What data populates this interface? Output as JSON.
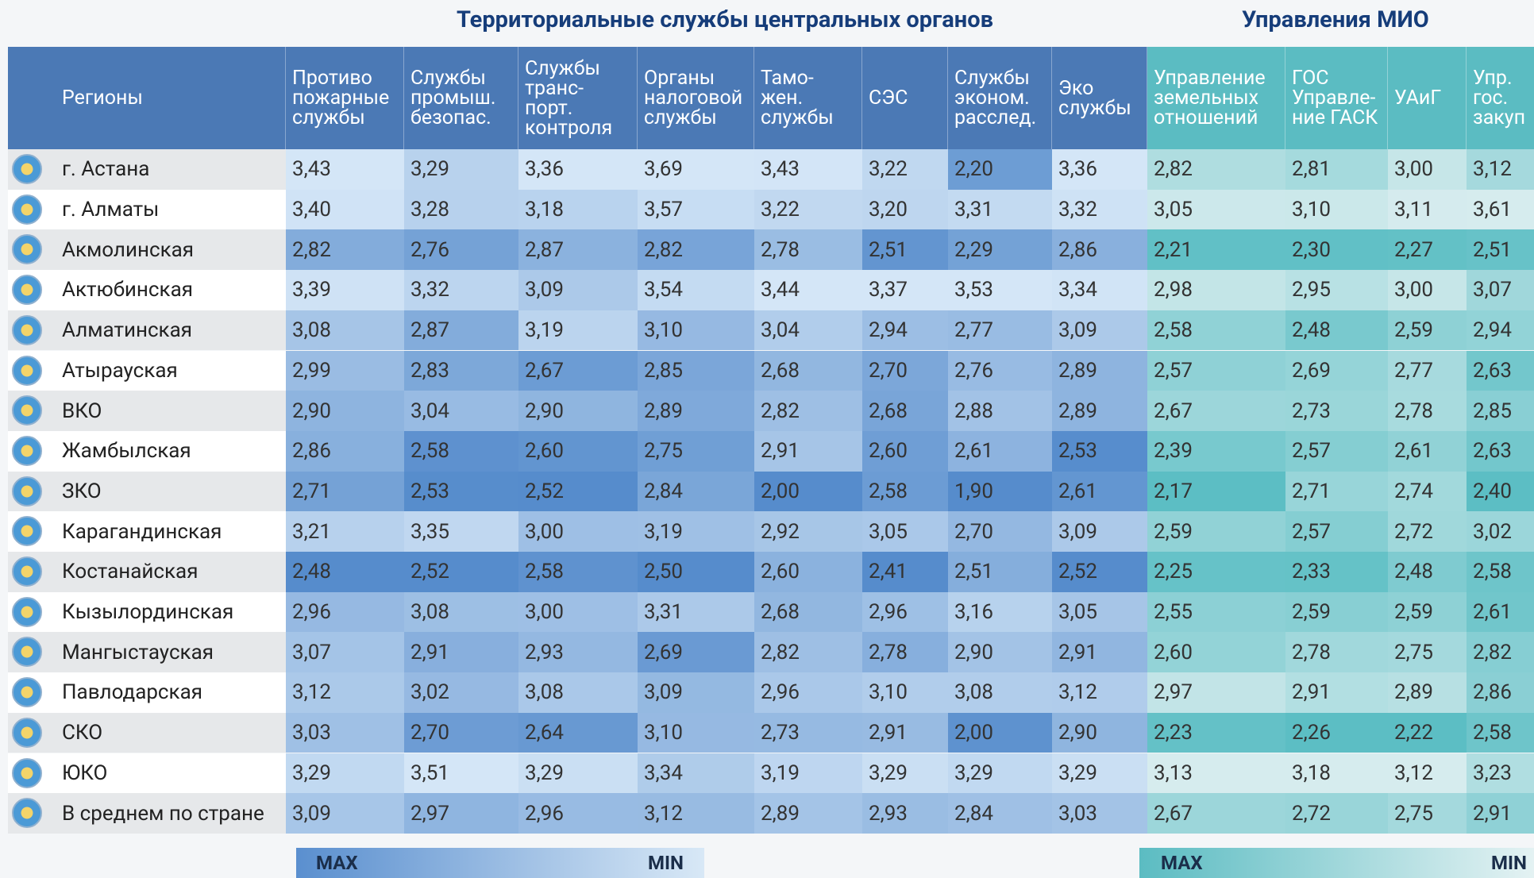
{
  "titles": {
    "left": "Территориальные службы центральных органов",
    "right": "Управления МИО"
  },
  "table": {
    "region_header": "Регионы",
    "columns": [
      "Противо\nпожарные\nслужбы",
      "Службы\nпромыш.\nбезопас.",
      "Службы\nтранс-\nпорт.\nконтроля",
      "Органы\nналоговой\nслужбы",
      "Тамо-\nжен.\nслужбы",
      "СЭС",
      "Службы\nэконом.\nрасслед.",
      "Эко\nслужбы",
      "Управление\nземельных\nотношений",
      "ГОС\nУправле-\nние ГАСК",
      "УАиГ",
      "Упр.\nгос.\nзакуп"
    ],
    "rows": [
      {
        "region": "г. Астана",
        "cells": [
          "3,43",
          "3,29",
          "3,36",
          "3,69",
          "3,43",
          "3,22",
          "2,20",
          "3,36",
          "2,82",
          "2,81",
          "3,00",
          "3,12"
        ]
      },
      {
        "region": "г. Алматы",
        "cells": [
          "3,40",
          "3,28",
          "3,18",
          "3,57",
          "3,22",
          "3,20",
          "3,31",
          "3,32",
          "3,05",
          "3,10",
          "3,11",
          "3,61"
        ]
      },
      {
        "region": "Акмолинская",
        "cells": [
          "2,82",
          "2,76",
          "2,87",
          "2,82",
          "2,78",
          "2,51",
          "2,29",
          "2,86",
          "2,21",
          "2,30",
          "2,27",
          "2,51"
        ]
      },
      {
        "region": "Актюбинская",
        "cells": [
          "3,39",
          "3,32",
          "3,09",
          "3,54",
          "3,44",
          "3,37",
          "3,53",
          "3,34",
          "2,98",
          "2,95",
          "3,00",
          "3,07"
        ]
      },
      {
        "region": "Алматинская",
        "cells": [
          "3,08",
          "2,87",
          "3,19",
          "3,10",
          "3,04",
          "2,94",
          "2,77",
          "3,09",
          "2,58",
          "2,48",
          "2,59",
          "2,94"
        ]
      },
      {
        "region": "Атырауская",
        "cells": [
          "2,99",
          "2,83",
          "2,67",
          "2,85",
          "2,68",
          "2,70",
          "2,76",
          "2,89",
          "2,57",
          "2,69",
          "2,77",
          "2,63"
        ]
      },
      {
        "region": "ВКО",
        "cells": [
          "2,90",
          "3,04",
          "2,90",
          "2,89",
          "2,82",
          "2,68",
          "2,88",
          "2,89",
          "2,67",
          "2,73",
          "2,78",
          "2,85"
        ]
      },
      {
        "region": "Жамбылская",
        "cells": [
          "2,86",
          "2,58",
          "2,60",
          "2,75",
          "2,91",
          "2,60",
          "2,61",
          "2,53",
          "2,39",
          "2,57",
          "2,61",
          "2,63"
        ]
      },
      {
        "region": "ЗКО",
        "cells": [
          "2,71",
          "2,53",
          "2,52",
          "2,84",
          "2,00",
          "2,58",
          "1,90",
          "2,61",
          "2,17",
          "2,71",
          "2,74",
          "2,40"
        ]
      },
      {
        "region": "Карагандинская",
        "cells": [
          "3,21",
          "3,35",
          "3,00",
          "3,19",
          "2,92",
          "3,05",
          "2,70",
          "3,09",
          "2,59",
          "2,57",
          "2,72",
          "3,02"
        ]
      },
      {
        "region": "Костанайская",
        "cells": [
          "2,48",
          "2,52",
          "2,58",
          "2,50",
          "2,60",
          "2,41",
          "2,51",
          "2,52",
          "2,25",
          "2,33",
          "2,48",
          "2,58"
        ]
      },
      {
        "region": "Кызылординская",
        "cells": [
          "2,96",
          "3,08",
          "3,00",
          "3,31",
          "2,68",
          "2,96",
          "3,16",
          "3,05",
          "2,55",
          "2,59",
          "2,59",
          "2,61"
        ]
      },
      {
        "region": "Мангыстауская",
        "cells": [
          "3,07",
          "2,91",
          "2,93",
          "2,69",
          "2,82",
          "2,78",
          "2,90",
          "2,91",
          "2,60",
          "2,78",
          "2,75",
          "2,82"
        ]
      },
      {
        "region": "Павлодарская",
        "cells": [
          "3,12",
          "3,02",
          "3,08",
          "3,09",
          "2,96",
          "3,10",
          "3,08",
          "3,12",
          "2,97",
          "2,91",
          "2,89",
          "2,86"
        ]
      },
      {
        "region": "СКО",
        "cells": [
          "3,03",
          "2,70",
          "2,64",
          "3,10",
          "2,73",
          "2,91",
          "2,00",
          "2,90",
          "2,23",
          "2,26",
          "2,22",
          "2,58"
        ]
      },
      {
        "region": "ЮКО",
        "cells": [
          "3,29",
          "3,51",
          "3,29",
          "3,34",
          "3,19",
          "3,29",
          "3,29",
          "3,29",
          "3,13",
          "3,18",
          "3,12",
          "3,23"
        ]
      },
      {
        "region": "В среднем по стране",
        "cells": [
          "3,09",
          "2,97",
          "2,96",
          "3,12",
          "2,89",
          "2,93",
          "2,84",
          "3,03",
          "2,67",
          "2,72",
          "2,75",
          "2,91"
        ]
      }
    ]
  },
  "legend": {
    "left_max": "MAX",
    "left_min": "MIN",
    "right_max": "MAX",
    "right_min": "MIN"
  }
}
